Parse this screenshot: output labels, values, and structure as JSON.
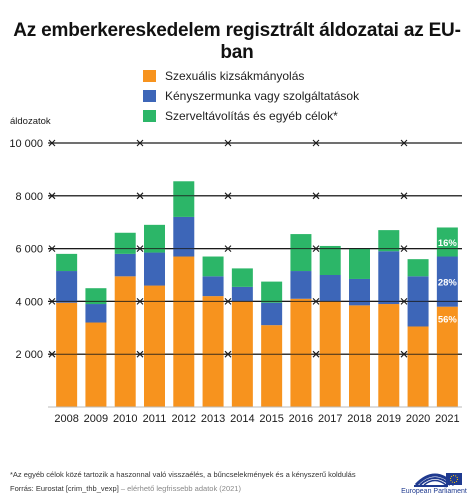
{
  "chart_data": {
    "type": "bar",
    "stacked": true,
    "title": "Az emberkereskedelem regisztrált áldozatai az EU-ban",
    "ylabel": "áldozatok",
    "ylim": [
      0,
      10000
    ],
    "yticks": [
      2000,
      4000,
      6000,
      8000,
      10000
    ],
    "ytick_labels": [
      "2 000",
      "4 000",
      "6 000",
      "8 000",
      "10 000"
    ],
    "categories": [
      "2008",
      "2009",
      "2010",
      "2011",
      "2012",
      "2013",
      "2014",
      "2015",
      "2016",
      "2017",
      "2018",
      "2019",
      "2020",
      "2021"
    ],
    "series": [
      {
        "name": "Szexuális kizsákmányolás",
        "color": "#f7931e",
        "values": [
          3950,
          3200,
          4950,
          4600,
          5700,
          4200,
          4000,
          3100,
          4100,
          4000,
          3850,
          3900,
          3050,
          3800
        ]
      },
      {
        "name": "Kényszermunka vagy szolgáltatások",
        "color": "#3d66b8",
        "values": [
          1200,
          700,
          850,
          1250,
          1500,
          750,
          550,
          850,
          1050,
          1000,
          1000,
          2000,
          1900,
          1900
        ]
      },
      {
        "name": "Szerveltávolítás és egyéb célok*",
        "color": "#2cb668",
        "values": [
          650,
          600,
          800,
          1050,
          1350,
          750,
          700,
          800,
          1400,
          1100,
          1150,
          800,
          650,
          1100
        ]
      }
    ],
    "annotations": [
      {
        "category": "2021",
        "series": "Szexuális kizsákmányolás",
        "label": "56%"
      },
      {
        "category": "2021",
        "series": "Kényszermunka vagy szolgáltatások",
        "label": "28%"
      },
      {
        "category": "2021",
        "series": "Szerveltávolítás és egyéb célok*",
        "label": "16%"
      }
    ],
    "legend_position": "top",
    "grid": true
  },
  "footnote": "*Az egyéb célok közé tartozik a haszonnal való visszaélés, a bűncselekmények és a kényszerű koldulás",
  "source": "Forrás: Eurostat [crim_thb_vexp]",
  "source_extra": " – elérhető legfrissebb adatok (2021)",
  "logo_text": "European Parliament",
  "colors": {
    "gridline": "#1a1a1a",
    "axis_text": "#1a1a1a",
    "logo_blue": "#1f3a8f"
  }
}
